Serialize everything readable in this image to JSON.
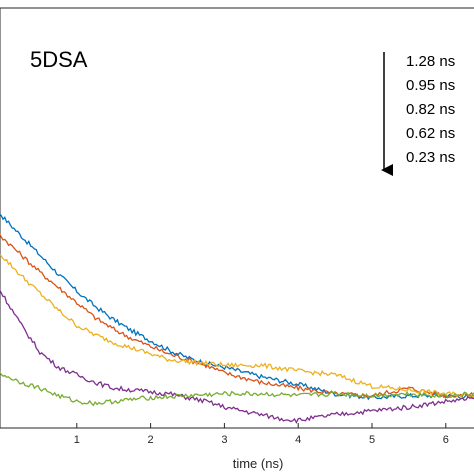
{
  "chart_data": {
    "type": "line",
    "title": "",
    "xlabel": "time (ns)",
    "ylabel": "",
    "xlim": [
      -0.5,
      7.5
    ],
    "ylim": [
      0,
      1
    ],
    "xticks": [
      1,
      2,
      3,
      4,
      5,
      6
    ],
    "grid": false,
    "panel_label": "5DSA",
    "legend": {
      "placement": "top-right",
      "arrow": "down",
      "entries": [
        "1.28 ns",
        "0.95 ns",
        "0.82 ns",
        "0.62 ns",
        "0.23 ns"
      ]
    },
    "series": [
      {
        "label": "1.28 ns",
        "color": "#0072BD",
        "x": [
          -0.5,
          -0.3,
          -0.1,
          0.0,
          0.25,
          0.5,
          0.75,
          1.0,
          1.25,
          1.5,
          1.75,
          2.0,
          2.25,
          2.5,
          2.75,
          3.0,
          3.5,
          4.0,
          4.5,
          5.0,
          5.5,
          6.0,
          6.5,
          7.0,
          7.5
        ],
        "y": [
          0.59,
          0.6,
          0.58,
          0.555,
          0.505,
          0.455,
          0.405,
          0.36,
          0.32,
          0.285,
          0.255,
          0.23,
          0.205,
          0.185,
          0.17,
          0.16,
          0.135,
          0.115,
          0.09,
          0.08,
          0.085,
          0.085,
          0.08,
          0.09,
          0.095
        ]
      },
      {
        "label": "0.95 ns",
        "color": "#D95319",
        "x": [
          -0.5,
          -0.3,
          -0.1,
          0.0,
          0.25,
          0.5,
          0.75,
          1.0,
          1.25,
          1.5,
          1.75,
          2.0,
          2.25,
          2.5,
          2.75,
          3.0,
          3.5,
          4.0,
          4.5,
          5.0,
          5.5,
          6.0,
          6.5,
          7.0,
          7.5
        ],
        "y": [
          0.53,
          0.53,
          0.52,
          0.5,
          0.455,
          0.41,
          0.37,
          0.33,
          0.29,
          0.26,
          0.235,
          0.215,
          0.195,
          0.18,
          0.165,
          0.145,
          0.12,
          0.105,
          0.09,
          0.085,
          0.105,
          0.085,
          0.09,
          0.095,
          0.09
        ]
      },
      {
        "label": "0.82 ns",
        "color": "#EDB120",
        "x": [
          -0.5,
          -0.3,
          -0.1,
          0.0,
          0.25,
          0.5,
          0.75,
          1.0,
          1.25,
          1.5,
          1.75,
          2.0,
          2.25,
          2.5,
          2.75,
          3.0,
          3.5,
          4.0,
          4.5,
          5.0,
          5.5,
          6.0,
          6.5,
          7.0,
          7.5
        ],
        "y": [
          0.49,
          0.49,
          0.47,
          0.45,
          0.4,
          0.355,
          0.31,
          0.27,
          0.245,
          0.225,
          0.21,
          0.195,
          0.18,
          0.175,
          0.17,
          0.165,
          0.165,
          0.15,
          0.14,
          0.11,
          0.1,
          0.09,
          0.085,
          0.09,
          0.095
        ]
      },
      {
        "label": "0.62 ns",
        "color": "#7E2F8E",
        "x": [
          -0.5,
          -0.3,
          -0.1,
          0.0,
          0.25,
          0.5,
          0.75,
          1.0,
          1.25,
          1.5,
          1.75,
          2.0,
          2.25,
          2.5,
          2.75,
          3.0,
          3.25,
          3.5,
          3.75,
          4.0,
          4.5,
          5.0,
          5.5,
          6.0,
          6.5,
          7.0,
          7.5
        ],
        "y": [
          0.42,
          0.41,
          0.38,
          0.35,
          0.27,
          0.2,
          0.16,
          0.14,
          0.12,
          0.105,
          0.1,
          0.095,
          0.09,
          0.08,
          0.07,
          0.055,
          0.045,
          0.035,
          0.025,
          0.02,
          0.035,
          0.045,
          0.055,
          0.07,
          0.08,
          0.085,
          0.09
        ]
      },
      {
        "label": "0.23 ns",
        "color": "#77AC30",
        "x": [
          -0.5,
          -0.3,
          -0.1,
          0.0,
          0.25,
          0.5,
          0.75,
          1.0,
          1.25,
          1.5,
          1.75,
          2.0,
          2.5,
          3.0,
          3.5,
          4.0,
          4.5,
          5.0,
          5.5,
          6.0,
          6.5,
          7.0,
          7.5
        ],
        "y": [
          0.17,
          0.16,
          0.15,
          0.14,
          0.12,
          0.105,
          0.085,
          0.07,
          0.065,
          0.07,
          0.075,
          0.08,
          0.085,
          0.09,
          0.09,
          0.085,
          0.09,
          0.085,
          0.09,
          0.085,
          0.09,
          0.085,
          0.09
        ]
      }
    ]
  }
}
